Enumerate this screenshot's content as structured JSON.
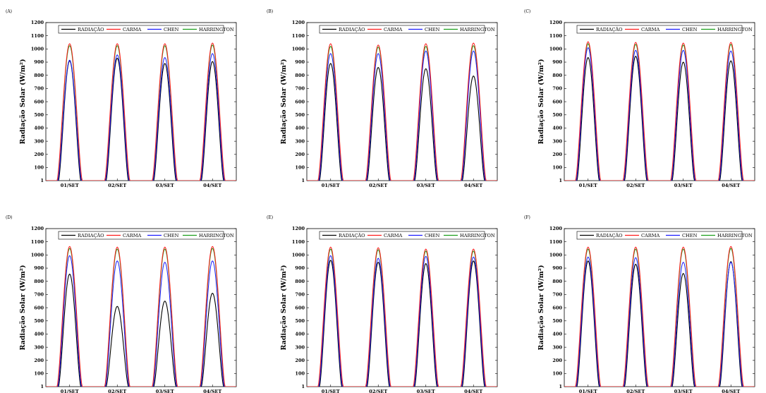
{
  "figure": {
    "series_colors": {
      "RADIAÇÃO": "#000000",
      "CARMA": "#ff1a1a",
      "CHEN": "#1a1aff",
      "HARRINGTON": "#1a9e1a"
    }
  },
  "chart_data": [
    {
      "type": "line",
      "panel_label": "(A)",
      "ylabel": "Radiação Solar (W/m²)",
      "ylim": [
        1,
        1200
      ],
      "yticks": [
        1,
        100,
        200,
        300,
        400,
        500,
        600,
        700,
        800,
        900,
        1000,
        1100,
        1200
      ],
      "categories": [
        "01/SET",
        "02/SET",
        "03/SET",
        "04/SET"
      ],
      "legend": [
        "RADIAÇÃO",
        "CARMA",
        "CHEN",
        "HARRINGTON"
      ],
      "series": [
        {
          "name": "RADIAÇÃO",
          "daily_peaks": [
            910,
            930,
            890,
            905
          ]
        },
        {
          "name": "CARMA",
          "daily_peaks": [
            1040,
            1040,
            1040,
            1045
          ]
        },
        {
          "name": "CHEN",
          "daily_peaks": [
            915,
            955,
            935,
            965
          ]
        },
        {
          "name": "HARRINGTON",
          "daily_peaks": [
            1025,
            1025,
            1025,
            1030
          ]
        }
      ]
    },
    {
      "type": "line",
      "panel_label": "(B)",
      "ylabel": "Radiação Solar (W/m²)",
      "ylim": [
        1,
        1200
      ],
      "yticks": [
        1,
        100,
        200,
        300,
        400,
        500,
        600,
        700,
        800,
        900,
        1000,
        1100,
        1200
      ],
      "categories": [
        "01/SET",
        "02/SET",
        "03/SET",
        "04/SET"
      ],
      "legend": [
        "RADIAÇÃO",
        "CARMA",
        "CHEN",
        "HARRINGTON"
      ],
      "series": [
        {
          "name": "RADIAÇÃO",
          "daily_peaks": [
            890,
            860,
            850,
            795
          ]
        },
        {
          "name": "CARMA",
          "daily_peaks": [
            1040,
            1030,
            1040,
            1045
          ]
        },
        {
          "name": "CHEN",
          "daily_peaks": [
            965,
            965,
            985,
            985
          ]
        },
        {
          "name": "HARRINGTON",
          "daily_peaks": [
            1020,
            1015,
            1020,
            1025
          ]
        }
      ]
    },
    {
      "type": "line",
      "panel_label": "(C)",
      "ylabel": "Radiação Solar (W/m²)",
      "ylim": [
        1,
        1200
      ],
      "yticks": [
        1,
        100,
        200,
        300,
        400,
        500,
        600,
        700,
        800,
        900,
        1000,
        1100,
        1200
      ],
      "categories": [
        "01/SET",
        "02/SET",
        "03/SET",
        "04/SET"
      ],
      "legend": [
        "RADIAÇÃO",
        "CARMA",
        "CHEN",
        "HARRINGTON"
      ],
      "series": [
        {
          "name": "RADIAÇÃO",
          "daily_peaks": [
            935,
            945,
            900,
            910
          ]
        },
        {
          "name": "CARMA",
          "daily_peaks": [
            1055,
            1050,
            1045,
            1050
          ]
        },
        {
          "name": "CHEN",
          "daily_peaks": [
            1010,
            990,
            990,
            985
          ]
        },
        {
          "name": "HARRINGTON",
          "daily_peaks": [
            1040,
            1035,
            1030,
            1035
          ]
        }
      ]
    },
    {
      "type": "line",
      "panel_label": "(D)",
      "ylabel": "Radiação Solar (W/m²)",
      "ylim": [
        1,
        1200
      ],
      "yticks": [
        1,
        100,
        200,
        300,
        400,
        500,
        600,
        700,
        800,
        900,
        1000,
        1100,
        1200
      ],
      "categories": [
        "01/SET",
        "02/SET",
        "03/SET",
        "04/SET"
      ],
      "legend": [
        "RADIAÇÃO",
        "CARMA",
        "CHEN",
        "HARRINGTON"
      ],
      "series": [
        {
          "name": "RADIAÇÃO",
          "daily_peaks": [
            855,
            610,
            650,
            710
          ]
        },
        {
          "name": "CARMA",
          "daily_peaks": [
            1065,
            1060,
            1060,
            1065
          ]
        },
        {
          "name": "CHEN",
          "daily_peaks": [
            995,
            955,
            945,
            955
          ]
        },
        {
          "name": "HARRINGTON",
          "daily_peaks": [
            1050,
            1045,
            1045,
            1050
          ]
        }
      ]
    },
    {
      "type": "line",
      "panel_label": "(E)",
      "ylabel": "Radiação Solar (W/m²)",
      "ylim": [
        1,
        1200
      ],
      "yticks": [
        1,
        100,
        200,
        300,
        400,
        500,
        600,
        700,
        800,
        900,
        1000,
        1100,
        1200
      ],
      "categories": [
        "01/SET",
        "02/SET",
        "03/SET",
        "04/SET"
      ],
      "legend": [
        "RADIAÇÃO",
        "CARMA",
        "CHEN",
        "HARRINGTON"
      ],
      "series": [
        {
          "name": "RADIAÇÃO",
          "daily_peaks": [
            960,
            945,
            935,
            955
          ]
        },
        {
          "name": "CARMA",
          "daily_peaks": [
            1060,
            1055,
            1045,
            1045
          ]
        },
        {
          "name": "CHEN",
          "daily_peaks": [
            995,
            975,
            990,
            985
          ]
        },
        {
          "name": "HARRINGTON",
          "daily_peaks": [
            1045,
            1040,
            1030,
            1030
          ]
        }
      ]
    },
    {
      "type": "line",
      "panel_label": "(F)",
      "ylabel": "Radiação Solar (W/m²)",
      "ylim": [
        1,
        1200
      ],
      "yticks": [
        1,
        100,
        200,
        300,
        400,
        500,
        600,
        700,
        800,
        900,
        1000,
        1100,
        1200
      ],
      "categories": [
        "01/SET",
        "02/SET",
        "03/SET",
        "04/SET"
      ],
      "legend": [
        "RADIAÇÃO",
        "CARMA",
        "CHEN",
        "HARRINGTON"
      ],
      "series": [
        {
          "name": "RADIAÇÃO",
          "daily_peaks": [
            955,
            930,
            860,
            950
          ]
        },
        {
          "name": "CARMA",
          "daily_peaks": [
            1060,
            1060,
            1060,
            1065
          ]
        },
        {
          "name": "CHEN",
          "daily_peaks": [
            985,
            980,
            945,
            945
          ]
        },
        {
          "name": "HARRINGTON",
          "daily_peaks": [
            1045,
            1045,
            1045,
            1050
          ]
        }
      ]
    }
  ]
}
